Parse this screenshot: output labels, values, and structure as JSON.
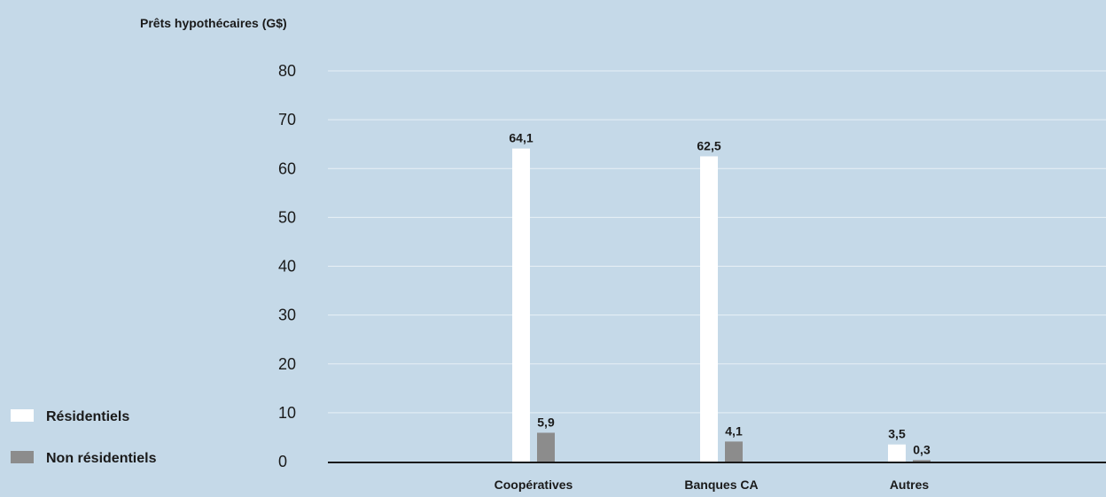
{
  "chart_data": {
    "type": "bar",
    "ylabel": "Prêts hypothécaires (G$)",
    "ylim": [
      0,
      80
    ],
    "yticks": [
      "0",
      "10",
      "20",
      "30",
      "40",
      "50",
      "60",
      "70",
      "80"
    ],
    "categories": [
      "Coopératives",
      "Banques CA",
      "Autres"
    ],
    "series": [
      {
        "name": "Résidentiels",
        "values": [
          64.1,
          62.5,
          3.5
        ],
        "labels": [
          "64,1",
          "62,5",
          "3,5"
        ],
        "color": "#ffffff"
      },
      {
        "name": "Non résidentiels",
        "values": [
          5.9,
          4.1,
          0.3
        ],
        "labels": [
          "5,9",
          "4,1",
          "0,3"
        ],
        "color": "#8c8c8c"
      }
    ],
    "grid": true,
    "legend_position": "bottom-left",
    "background_color": "#c5d9e8",
    "gridline_color": "#e8f0f6",
    "axis_color": "#1a1a1a"
  }
}
